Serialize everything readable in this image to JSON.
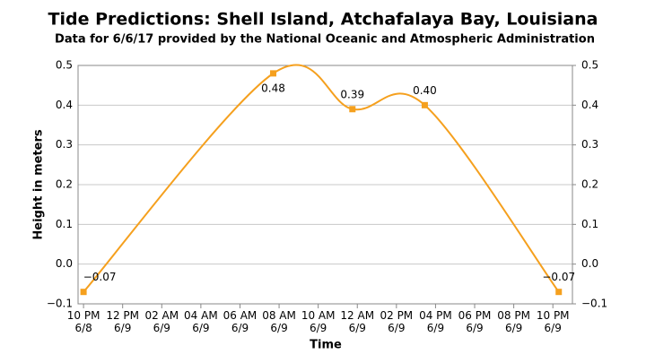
{
  "chart_data": {
    "type": "line",
    "title": "Tide Predictions: Shell Island, Atchafalaya Bay, Louisiana",
    "subtitle": "Data for 6/6/17 provided by the National Oceanic and Atmospheric Administration",
    "y_label": "Height in meters",
    "x_label": "Time",
    "x": [
      0,
      9.7,
      13.75,
      17.45,
      24.3
    ],
    "values": [
      -0.07,
      0.48,
      0.39,
      0.4,
      -0.07
    ],
    "value_labels": [
      "−0.07",
      "0.48",
      "0.39",
      "0.40",
      "−0.07"
    ],
    "color": "#f5a01e",
    "xlim": [
      -0.28,
      25
    ],
    "xticks": [
      {
        "value": 0,
        "label": "10 PM\n6/8"
      },
      {
        "value": 2,
        "label": "12 PM\n6/9"
      },
      {
        "value": 4,
        "label": "02 AM\n6/9"
      },
      {
        "value": 6,
        "label": "04 AM\n6/9"
      },
      {
        "value": 8,
        "label": "06 AM\n6/9"
      },
      {
        "value": 10,
        "label": "08 AM\n6/9"
      },
      {
        "value": 12,
        "label": "10 AM\n6/9"
      },
      {
        "value": 14,
        "label": "12 AM\n6/9"
      },
      {
        "value": 16,
        "label": "02 PM\n6/9"
      },
      {
        "value": 18,
        "label": "04 PM\n6/9"
      },
      {
        "value": 20,
        "label": "06 PM\n6/9"
      },
      {
        "value": 22,
        "label": "08 PM\n6/9"
      },
      {
        "value": 24,
        "label": "10 PM\n6/9"
      }
    ],
    "ylim": [
      -0.1,
      0.5
    ],
    "yticks": [
      {
        "value": -0.1,
        "label": "−0.1"
      },
      {
        "value": 0,
        "label": "0.0"
      },
      0.1,
      0.2,
      0.3,
      0.4,
      0.5
    ],
    "y2lim": [
      -0.1,
      0.5
    ],
    "y2ticks": [
      {
        "value": -0.1,
        "label": "−0.1"
      },
      {
        "value": 0,
        "label": "0.0"
      },
      0.1,
      0.2,
      0.3,
      0.4,
      0.5
    ],
    "grid": true
  }
}
